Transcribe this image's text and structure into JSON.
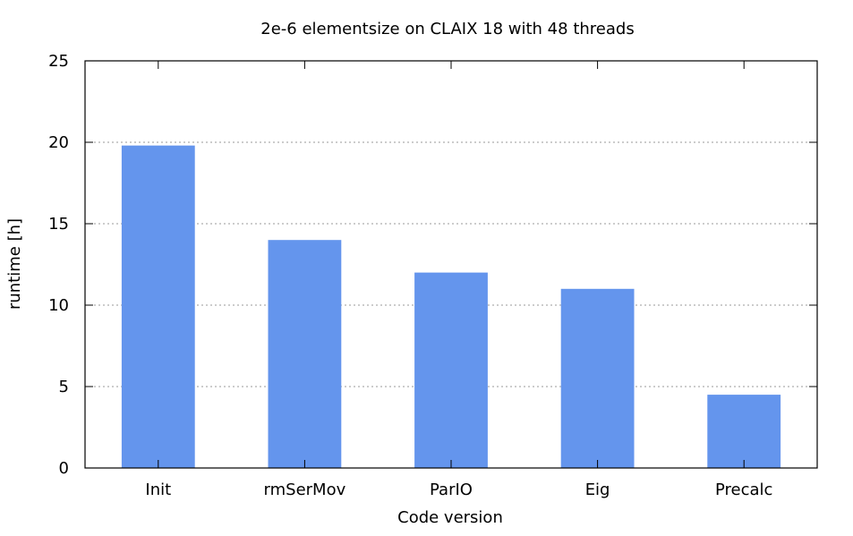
{
  "chart_data": {
    "type": "bar",
    "title": "2e-6 elementsize on CLAIX 18 with 48 threads",
    "xlabel": "Code version",
    "ylabel": "runtime [h]",
    "categories": [
      "Init",
      "rmSerMov",
      "ParIO",
      "Eig",
      "Precalc"
    ],
    "values": [
      19.8,
      14.0,
      12.0,
      11.0,
      4.5
    ],
    "ylim": [
      0,
      25
    ],
    "yticks": [
      0,
      5,
      10,
      15,
      20,
      25
    ],
    "grid": "horizontal dotted",
    "bar_color": "#6495ED",
    "legend": "none"
  }
}
